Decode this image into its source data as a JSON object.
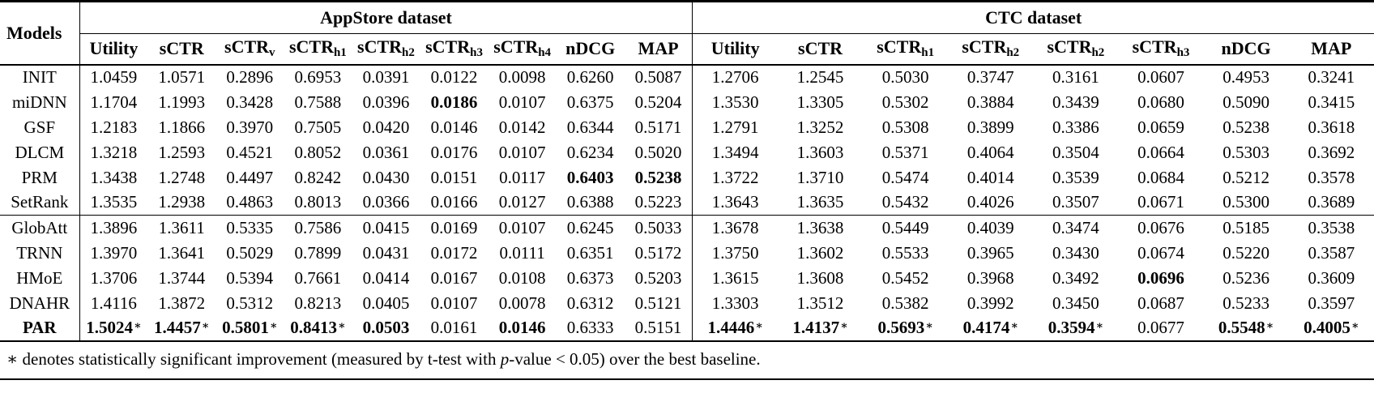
{
  "table": {
    "models_header": "Models",
    "star_symbol": "∗",
    "group_headers": [
      {
        "label": "AppStore dataset",
        "colspan": 9,
        "key": "appstore"
      },
      {
        "label": "CTC dataset",
        "colspan": 8,
        "key": "ctc"
      }
    ],
    "metric_columns": [
      {
        "label": "Utility",
        "sub": ""
      },
      {
        "label": "sCTR",
        "sub": ""
      },
      {
        "label": "sCTR",
        "sub": "v"
      },
      {
        "label": "sCTR",
        "sub": "h1"
      },
      {
        "label": "sCTR",
        "sub": "h2"
      },
      {
        "label": "sCTR",
        "sub": "h3"
      },
      {
        "label": "sCTR",
        "sub": "h4"
      },
      {
        "label": "nDCG",
        "sub": ""
      },
      {
        "label": "MAP",
        "sub": ""
      },
      {
        "label": "Utility",
        "sub": ""
      },
      {
        "label": "sCTR",
        "sub": ""
      },
      {
        "label": "sCTR",
        "sub": "h1"
      },
      {
        "label": "sCTR",
        "sub": "h2"
      },
      {
        "label": "sCTR",
        "sub": "h2"
      },
      {
        "label": "sCTR",
        "sub": "h3"
      },
      {
        "label": "nDCG",
        "sub": ""
      },
      {
        "label": "MAP",
        "sub": ""
      }
    ],
    "rows": [
      {
        "model": "INIT",
        "bold_model": false,
        "separator_above": false,
        "values": [
          "1.0459",
          "1.0571",
          "0.2896",
          "0.6953",
          "0.0391",
          "0.0122",
          "0.0098",
          "0.6260",
          "0.5087",
          "1.2706",
          "1.2545",
          "0.5030",
          "0.3747",
          "0.3161",
          "0.0607",
          "0.4953",
          "0.3241"
        ],
        "bold": [],
        "star": []
      },
      {
        "model": "miDNN",
        "bold_model": false,
        "separator_above": false,
        "values": [
          "1.1704",
          "1.1993",
          "0.3428",
          "0.7588",
          "0.0396",
          "0.0186",
          "0.0107",
          "0.6375",
          "0.5204",
          "1.3530",
          "1.3305",
          "0.5302",
          "0.3884",
          "0.3439",
          "0.0680",
          "0.5090",
          "0.3415"
        ],
        "bold": [
          5
        ],
        "star": []
      },
      {
        "model": "GSF",
        "bold_model": false,
        "separator_above": false,
        "values": [
          "1.2183",
          "1.1866",
          "0.3970",
          "0.7505",
          "0.0420",
          "0.0146",
          "0.0142",
          "0.6344",
          "0.5171",
          "1.2791",
          "1.3252",
          "0.5308",
          "0.3899",
          "0.3386",
          "0.0659",
          "0.5238",
          "0.3618"
        ],
        "bold": [],
        "star": []
      },
      {
        "model": "DLCM",
        "bold_model": false,
        "separator_above": false,
        "values": [
          "1.3218",
          "1.2593",
          "0.4521",
          "0.8052",
          "0.0361",
          "0.0176",
          "0.0107",
          "0.6234",
          "0.5020",
          "1.3494",
          "1.3603",
          "0.5371",
          "0.4064",
          "0.3504",
          "0.0664",
          "0.5303",
          "0.3692"
        ],
        "bold": [],
        "star": []
      },
      {
        "model": "PRM",
        "bold_model": false,
        "separator_above": false,
        "values": [
          "1.3438",
          "1.2748",
          "0.4497",
          "0.8242",
          "0.0430",
          "0.0151",
          "0.0117",
          "0.6403",
          "0.5238",
          "1.3722",
          "1.3710",
          "0.5474",
          "0.4014",
          "0.3539",
          "0.0684",
          "0.5212",
          "0.3578"
        ],
        "bold": [
          7,
          8
        ],
        "star": []
      },
      {
        "model": "SetRank",
        "bold_model": false,
        "separator_above": false,
        "values": [
          "1.3535",
          "1.2938",
          "0.4863",
          "0.8013",
          "0.0366",
          "0.0166",
          "0.0127",
          "0.6388",
          "0.5223",
          "1.3643",
          "1.3635",
          "0.5432",
          "0.4026",
          "0.3507",
          "0.0671",
          "0.5300",
          "0.3689"
        ],
        "bold": [],
        "star": []
      },
      {
        "model": "GlobAtt",
        "bold_model": false,
        "separator_above": true,
        "values": [
          "1.3896",
          "1.3611",
          "0.5335",
          "0.7586",
          "0.0415",
          "0.0169",
          "0.0107",
          "0.6245",
          "0.5033",
          "1.3678",
          "1.3638",
          "0.5449",
          "0.4039",
          "0.3474",
          "0.0676",
          "0.5185",
          "0.3538"
        ],
        "bold": [],
        "star": []
      },
      {
        "model": "TRNN",
        "bold_model": false,
        "separator_above": false,
        "values": [
          "1.3970",
          "1.3641",
          "0.5029",
          "0.7899",
          "0.0431",
          "0.0172",
          "0.0111",
          "0.6351",
          "0.5172",
          "1.3750",
          "1.3602",
          "0.5533",
          "0.3965",
          "0.3430",
          "0.0674",
          "0.5220",
          "0.3587"
        ],
        "bold": [],
        "star": []
      },
      {
        "model": "HMoE",
        "bold_model": false,
        "separator_above": false,
        "values": [
          "1.3706",
          "1.3744",
          "0.5394",
          "0.7661",
          "0.0414",
          "0.0167",
          "0.0108",
          "0.6373",
          "0.5203",
          "1.3615",
          "1.3608",
          "0.5452",
          "0.3968",
          "0.3492",
          "0.0696",
          "0.5236",
          "0.3609"
        ],
        "bold": [
          14
        ],
        "star": []
      },
      {
        "model": "DNAHR",
        "bold_model": false,
        "separator_above": false,
        "values": [
          "1.4116",
          "1.3872",
          "0.5312",
          "0.8213",
          "0.0405",
          "0.0107",
          "0.0078",
          "0.6312",
          "0.5121",
          "1.3303",
          "1.3512",
          "0.5382",
          "0.3992",
          "0.3450",
          "0.0687",
          "0.5233",
          "0.3597"
        ],
        "bold": [],
        "star": []
      },
      {
        "model": "PAR",
        "bold_model": true,
        "separator_above": false,
        "values": [
          "1.5024",
          "1.4457",
          "0.5801",
          "0.8413",
          "0.0503",
          "0.0161",
          "0.0146",
          "0.6333",
          "0.5151",
          "1.4446",
          "1.4137",
          "0.5693",
          "0.4174",
          "0.3594",
          "0.0677",
          "0.5548",
          "0.4005"
        ],
        "bold": [
          0,
          1,
          2,
          3,
          4,
          6,
          9,
          10,
          11,
          12,
          13,
          15,
          16
        ],
        "star": [
          0,
          1,
          2,
          3,
          9,
          10,
          11,
          12,
          13,
          15,
          16
        ]
      }
    ],
    "footnote": {
      "part1": "∗ denotes statistically significant improvement (measured by t-test with ",
      "p": "p",
      "part2": "-value < 0.05) over the best baseline."
    }
  }
}
